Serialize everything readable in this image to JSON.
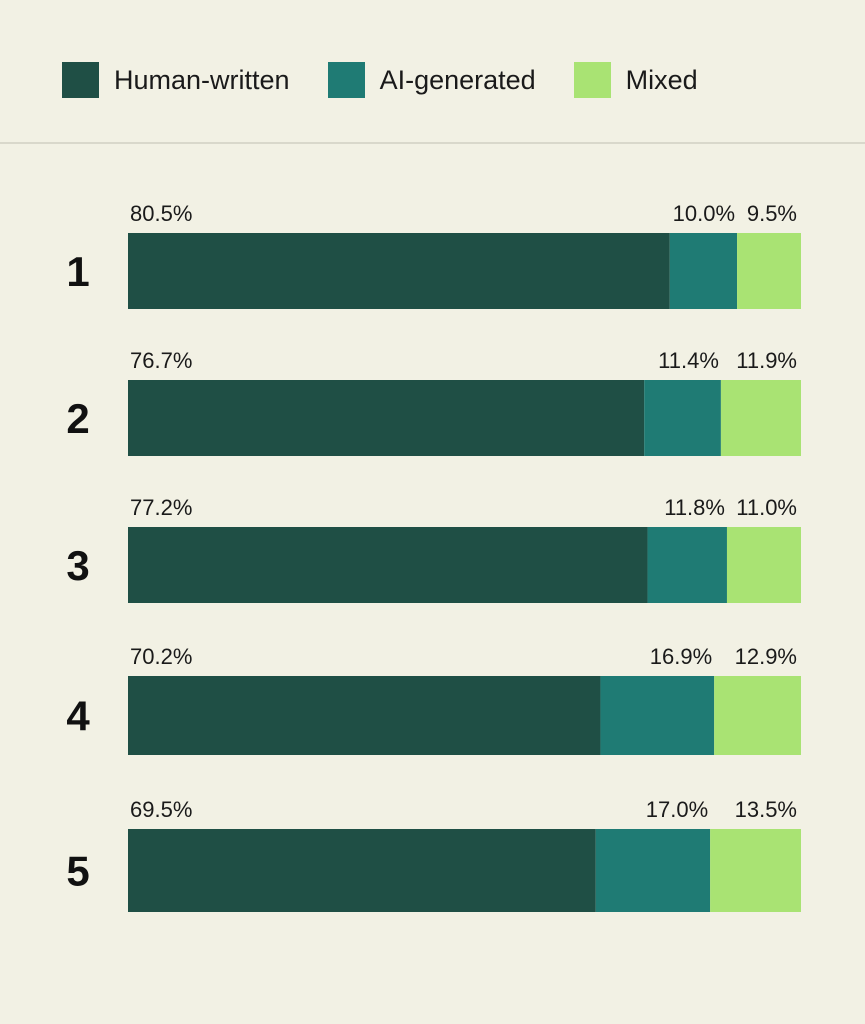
{
  "chart_data": {
    "type": "bar",
    "orientation": "horizontal-stacked-100",
    "title": "",
    "xlabel": "",
    "ylabel": "",
    "xlim": [
      0,
      100
    ],
    "legend_position": "top",
    "categories": [
      "1",
      "2",
      "3",
      "4",
      "5"
    ],
    "series": [
      {
        "name": "Human-written",
        "color": "#1f4f45",
        "values": [
          80.5,
          76.7,
          77.2,
          70.2,
          69.5
        ],
        "labels": [
          "80.5%",
          "76.7%",
          "77.2%",
          "70.2%",
          "69.5%"
        ]
      },
      {
        "name": "AI-generated",
        "color": "#1f7b74",
        "values": [
          10.0,
          11.4,
          11.8,
          16.9,
          17.0
        ],
        "labels": [
          "10.0%",
          "11.4%",
          "11.8%",
          "16.9%",
          "17.0%"
        ]
      },
      {
        "name": "Mixed",
        "color": "#a9e373",
        "values": [
          9.5,
          11.9,
          11.0,
          12.9,
          13.5
        ],
        "labels": [
          "9.5%",
          "11.9%",
          "11.0%",
          "12.9%",
          "13.5%"
        ]
      }
    ]
  }
}
